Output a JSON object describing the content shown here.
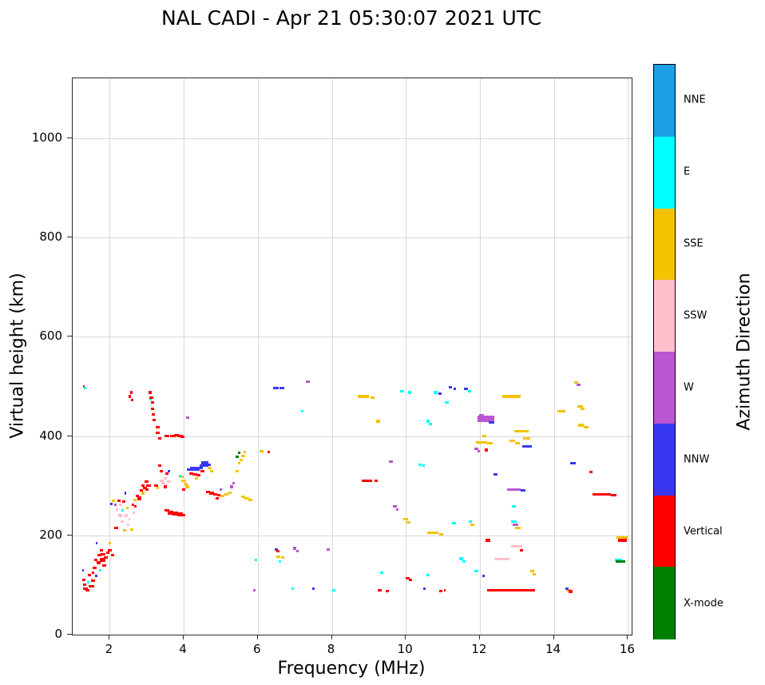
{
  "chart_data": {
    "type": "scatter",
    "title": "NAL CADI - Apr 21 05:30:07 2021 UTC",
    "xlabel": "Frequency (MHz)",
    "ylabel": "Virtual height (km)",
    "xlim": [
      1.0,
      16.1
    ],
    "ylim": [
      0,
      1121
    ],
    "xticks": [
      2,
      4,
      6,
      8,
      10,
      12,
      14,
      16
    ],
    "yticks": [
      0,
      200,
      400,
      600,
      800,
      1000
    ],
    "grid": true,
    "colorbar": {
      "label": "Azimuth Direction",
      "categories": [
        {
          "name": "NNE",
          "color": "#1C9FE6"
        },
        {
          "name": "E",
          "color": "#00FFFF"
        },
        {
          "name": "SSE",
          "color": "#F4C300"
        },
        {
          "name": "SSW",
          "color": "#FFC0CB"
        },
        {
          "name": "W",
          "color": "#BA55D3"
        },
        {
          "name": "NNW",
          "color": "#3838F0"
        },
        {
          "name": "Vertical",
          "color": "#FF0000"
        },
        {
          "name": "X-mode",
          "color": "#008000"
        }
      ]
    },
    "point_format": [
      "freq_mhz",
      "height_km",
      "category_index",
      "span_mhz",
      "thickness_km"
    ],
    "points": [
      [
        1.3,
        500,
        6,
        0.06
      ],
      [
        1.34,
        497,
        1,
        0.06
      ],
      [
        1.28,
        130,
        5,
        0.06
      ],
      [
        1.3,
        110,
        6,
        0.1
      ],
      [
        1.32,
        100,
        6,
        0.1
      ],
      [
        1.35,
        93,
        6,
        0.12
      ],
      [
        1.4,
        90,
        6,
        0.1
      ],
      [
        1.42,
        105,
        1,
        0.06
      ],
      [
        1.45,
        120,
        6,
        0.08
      ],
      [
        1.5,
        97,
        6,
        0.15
      ],
      [
        1.52,
        112,
        3,
        0.06
      ],
      [
        1.55,
        125,
        6,
        0.08
      ],
      [
        1.55,
        108,
        6,
        0.1
      ],
      [
        1.6,
        135,
        6,
        0.1
      ],
      [
        1.62,
        150,
        6,
        0.08
      ],
      [
        1.63,
        118,
        5,
        0.06
      ],
      [
        1.65,
        185,
        5,
        0.05
      ],
      [
        1.7,
        145,
        6,
        0.12
      ],
      [
        1.72,
        160,
        6,
        0.1
      ],
      [
        1.75,
        130,
        1,
        0.06
      ],
      [
        1.78,
        170,
        6,
        0.08
      ],
      [
        1.8,
        150,
        6,
        0.15,
        8
      ],
      [
        1.82,
        162,
        6,
        0.12
      ],
      [
        1.85,
        140,
        6,
        0.1
      ],
      [
        1.9,
        155,
        6,
        0.1
      ],
      [
        1.95,
        165,
        6,
        0.1
      ],
      [
        2.0,
        170,
        6,
        0.12
      ],
      [
        2.0,
        185,
        2,
        0.06
      ],
      [
        2.05,
        263,
        5,
        0.07
      ],
      [
        2.08,
        160,
        6,
        0.08
      ],
      [
        2.1,
        270,
        2,
        0.08
      ],
      [
        2.15,
        262,
        4,
        0.06
      ],
      [
        2.18,
        215,
        6,
        0.1
      ],
      [
        2.2,
        252,
        3,
        0.08
      ],
      [
        2.25,
        270,
        6,
        0.08
      ],
      [
        2.28,
        240,
        3,
        0.1
      ],
      [
        2.3,
        262,
        3,
        0.08
      ],
      [
        2.33,
        228,
        3,
        0.08
      ],
      [
        2.35,
        250,
        1,
        0.06
      ],
      [
        2.38,
        268,
        6,
        0.1
      ],
      [
        2.4,
        210,
        2,
        0.08
      ],
      [
        2.43,
        285,
        5,
        0.05
      ],
      [
        2.45,
        240,
        3,
        0.08
      ],
      [
        2.48,
        255,
        2,
        0.08
      ],
      [
        2.5,
        222,
        3,
        0.08
      ],
      [
        2.53,
        232,
        3,
        0.06
      ],
      [
        2.55,
        480,
        6,
        0.06
      ],
      [
        2.58,
        488,
        6,
        0.06
      ],
      [
        2.6,
        472,
        6,
        0.06
      ],
      [
        2.6,
        212,
        2,
        0.08
      ],
      [
        2.63,
        262,
        6,
        0.08
      ],
      [
        2.65,
        246,
        3,
        0.06
      ],
      [
        2.68,
        272,
        2,
        0.1
      ],
      [
        2.7,
        258,
        6,
        0.06
      ],
      [
        2.75,
        280,
        6,
        0.1
      ],
      [
        2.8,
        275,
        6,
        0.12,
        8
      ],
      [
        2.85,
        290,
        6,
        0.08
      ],
      [
        2.9,
        300,
        6,
        0.1
      ],
      [
        2.9,
        285,
        2,
        0.08
      ],
      [
        2.95,
        295,
        6,
        0.1
      ],
      [
        3.0,
        308,
        6,
        0.1
      ],
      [
        3.0,
        292,
        6,
        0.08
      ],
      [
        3.05,
        300,
        6,
        0.12
      ],
      [
        3.1,
        488,
        6,
        0.08
      ],
      [
        3.1,
        475,
        1,
        0.05
      ],
      [
        3.12,
        478,
        6,
        0.1
      ],
      [
        3.15,
        468,
        6,
        0.08
      ],
      [
        3.15,
        455,
        6,
        0.08
      ],
      [
        3.18,
        443,
        6,
        0.08
      ],
      [
        3.2,
        432,
        6,
        0.08
      ],
      [
        3.25,
        300,
        6,
        0.1
      ],
      [
        3.3,
        418,
        6,
        0.1
      ],
      [
        3.3,
        406,
        6,
        0.12
      ],
      [
        3.3,
        295,
        2,
        0.08
      ],
      [
        3.35,
        395,
        6,
        0.1
      ],
      [
        3.35,
        340,
        6,
        0.08
      ],
      [
        3.4,
        330,
        6,
        0.08
      ],
      [
        3.4,
        310,
        3,
        0.1
      ],
      [
        3.45,
        305,
        3,
        0.1
      ],
      [
        3.5,
        315,
        3,
        0.1
      ],
      [
        3.5,
        298,
        6,
        0.1
      ],
      [
        3.55,
        325,
        6,
        0.08
      ],
      [
        3.6,
        308,
        3,
        0.1
      ],
      [
        3.6,
        330,
        5,
        0.06
      ],
      [
        3.55,
        400,
        6,
        0.12
      ],
      [
        3.7,
        400,
        6,
        0.15
      ],
      [
        3.8,
        402,
        6,
        0.12
      ],
      [
        3.9,
        400,
        6,
        0.15
      ],
      [
        3.97,
        398,
        6,
        0.1
      ],
      [
        3.55,
        250,
        6,
        0.12
      ],
      [
        3.65,
        246,
        6,
        0.15,
        8
      ],
      [
        3.78,
        244,
        6,
        0.15,
        8
      ],
      [
        3.9,
        242,
        6,
        0.15,
        8
      ],
      [
        3.98,
        241,
        6,
        0.12
      ],
      [
        3.95,
        318,
        2,
        0.1
      ],
      [
        4.0,
        310,
        2,
        0.12
      ],
      [
        4.05,
        303,
        2,
        0.1
      ],
      [
        4.1,
        298,
        2,
        0.1
      ],
      [
        3.9,
        320,
        1,
        0.06
      ],
      [
        4.0,
        292,
        6,
        0.1
      ],
      [
        4.1,
        437,
        4,
        0.08
      ],
      [
        4.15,
        332,
        5,
        0.12
      ],
      [
        4.25,
        334,
        5,
        0.15,
        8
      ],
      [
        4.35,
        334,
        5,
        0.15,
        8
      ],
      [
        4.45,
        336,
        5,
        0.12
      ],
      [
        4.5,
        340,
        5,
        0.12
      ],
      [
        4.57,
        344,
        5,
        0.18,
        12
      ],
      [
        4.67,
        342,
        5,
        0.12
      ],
      [
        4.2,
        324,
        6,
        0.12
      ],
      [
        4.3,
        323,
        6,
        0.12
      ],
      [
        4.4,
        322,
        6,
        0.1
      ],
      [
        4.35,
        315,
        2,
        0.08
      ],
      [
        4.5,
        330,
        6,
        0.1
      ],
      [
        4.7,
        336,
        2,
        0.1
      ],
      [
        4.75,
        330,
        2,
        0.08
      ],
      [
        4.65,
        288,
        6,
        0.1
      ],
      [
        4.75,
        285,
        6,
        0.12
      ],
      [
        4.85,
        283,
        6,
        0.12
      ],
      [
        4.95,
        281,
        6,
        0.1
      ],
      [
        5.05,
        280,
        2,
        0.1
      ],
      [
        5.15,
        283,
        2,
        0.1
      ],
      [
        5.25,
        286,
        2,
        0.1
      ],
      [
        5.0,
        292,
        4,
        0.06
      ],
      [
        4.9,
        275,
        6,
        0.08
      ],
      [
        5.3,
        298,
        4,
        0.08
      ],
      [
        5.35,
        305,
        4,
        0.06
      ],
      [
        5.45,
        358,
        7,
        0.08
      ],
      [
        5.5,
        367,
        7,
        0.06
      ],
      [
        5.45,
        330,
        2,
        0.08
      ],
      [
        5.5,
        345,
        2,
        0.08
      ],
      [
        5.55,
        352,
        2,
        0.1
      ],
      [
        5.6,
        360,
        2,
        0.1
      ],
      [
        5.65,
        368,
        2,
        0.08
      ],
      [
        5.6,
        278,
        2,
        0.1
      ],
      [
        5.7,
        274,
        2,
        0.12
      ],
      [
        5.8,
        272,
        2,
        0.1
      ],
      [
        6.1,
        370,
        2,
        0.1
      ],
      [
        6.3,
        368,
        6,
        0.06
      ],
      [
        5.95,
        150,
        1,
        0.06
      ],
      [
        5.9,
        90,
        4,
        0.06
      ],
      [
        6.5,
        497,
        5,
        0.15
      ],
      [
        6.65,
        497,
        5,
        0.12
      ],
      [
        6.5,
        172,
        5,
        0.08
      ],
      [
        6.55,
        168,
        6,
        0.08
      ],
      [
        6.55,
        157,
        2,
        0.12
      ],
      [
        6.67,
        155,
        2,
        0.1
      ],
      [
        6.6,
        148,
        1,
        0.06
      ],
      [
        6.95,
        93,
        1,
        0.06
      ],
      [
        7.0,
        174,
        4,
        0.1
      ],
      [
        7.07,
        168,
        4,
        0.08
      ],
      [
        7.35,
        510,
        4,
        0.1
      ],
      [
        7.2,
        450,
        1,
        0.08
      ],
      [
        7.5,
        92,
        5,
        0.06
      ],
      [
        7.9,
        172,
        4,
        0.08
      ],
      [
        8.05,
        90,
        1,
        0.08
      ],
      [
        8.85,
        480,
        2,
        0.3
      ],
      [
        9.1,
        478,
        2,
        0.12
      ],
      [
        8.95,
        310,
        6,
        0.3
      ],
      [
        9.2,
        310,
        6,
        0.1
      ],
      [
        9.25,
        430,
        2,
        0.12
      ],
      [
        9.3,
        90,
        6,
        0.1
      ],
      [
        9.5,
        88,
        6,
        0.08
      ],
      [
        9.35,
        125,
        1,
        0.08
      ],
      [
        9.6,
        348,
        4,
        0.1
      ],
      [
        9.7,
        258,
        4,
        0.1
      ],
      [
        9.77,
        252,
        4,
        0.08
      ],
      [
        9.9,
        490,
        1,
        0.12
      ],
      [
        10.1,
        488,
        1,
        0.1
      ],
      [
        10.0,
        232,
        2,
        0.12
      ],
      [
        10.07,
        226,
        2,
        0.1
      ],
      [
        10.05,
        114,
        6,
        0.1
      ],
      [
        10.12,
        110,
        6,
        0.08
      ],
      [
        10.38,
        342,
        1,
        0.1
      ],
      [
        10.48,
        340,
        1,
        0.08
      ],
      [
        10.5,
        92,
        5,
        0.06
      ],
      [
        10.6,
        430,
        1,
        0.1
      ],
      [
        10.67,
        425,
        1,
        0.08
      ],
      [
        10.6,
        120,
        1,
        0.08
      ],
      [
        10.72,
        205,
        2,
        0.3
      ],
      [
        10.95,
        202,
        2,
        0.1
      ],
      [
        10.8,
        488,
        1,
        0.1
      ],
      [
        10.92,
        485,
        5,
        0.08
      ],
      [
        10.95,
        88,
        6,
        0.08
      ],
      [
        11.05,
        90,
        6,
        0.06
      ],
      [
        11.1,
        468,
        1,
        0.1
      ],
      [
        11.2,
        498,
        5,
        0.1
      ],
      [
        11.32,
        495,
        5,
        0.08
      ],
      [
        11.3,
        224,
        1,
        0.1
      ],
      [
        11.5,
        153,
        1,
        0.1
      ],
      [
        11.57,
        148,
        1,
        0.08
      ],
      [
        11.62,
        495,
        5,
        0.1
      ],
      [
        11.72,
        490,
        1,
        0.08
      ],
      [
        11.8,
        222,
        2,
        0.12
      ],
      [
        11.75,
        228,
        1,
        0.08
      ],
      [
        11.9,
        128,
        1,
        0.1
      ],
      [
        11.9,
        375,
        4,
        0.1
      ],
      [
        11.97,
        370,
        4,
        0.08
      ],
      [
        12.05,
        388,
        2,
        0.3
      ],
      [
        12.28,
        386,
        2,
        0.15
      ],
      [
        12.12,
        400,
        2,
        0.12
      ],
      [
        12.17,
        435,
        4,
        0.45,
        12
      ],
      [
        12.32,
        427,
        5,
        0.15
      ],
      [
        12.05,
        442,
        4,
        0.12
      ],
      [
        12.22,
        190,
        6,
        0.12
      ],
      [
        12.1,
        118,
        5,
        0.06
      ],
      [
        12.42,
        323,
        5,
        0.12
      ],
      [
        12.17,
        372,
        6,
        0.08
      ],
      [
        12.85,
        90,
        6,
        1.3
      ],
      [
        12.6,
        152,
        3,
        0.4
      ],
      [
        12.85,
        480,
        2,
        0.5
      ],
      [
        12.88,
        390,
        2,
        0.15
      ],
      [
        13.02,
        386,
        2,
        0.12
      ],
      [
        12.92,
        293,
        4,
        0.35
      ],
      [
        13.17,
        291,
        5,
        0.12
      ],
      [
        12.92,
        258,
        1,
        0.1
      ],
      [
        12.92,
        228,
        1,
        0.15
      ],
      [
        12.97,
        222,
        4,
        0.15
      ],
      [
        13.02,
        215,
        2,
        0.15
      ],
      [
        13.0,
        178,
        3,
        0.3
      ],
      [
        13.12,
        170,
        6,
        0.1
      ],
      [
        13.12,
        410,
        2,
        0.4
      ],
      [
        13.27,
        395,
        2,
        0.2
      ],
      [
        13.27,
        380,
        5,
        0.25
      ],
      [
        13.42,
        128,
        2,
        0.1
      ],
      [
        13.47,
        122,
        2,
        0.08
      ],
      [
        14.2,
        450,
        2,
        0.2
      ],
      [
        14.4,
        90,
        2,
        0.12
      ],
      [
        14.45,
        87,
        6,
        0.1
      ],
      [
        14.35,
        93,
        5,
        0.08
      ],
      [
        14.52,
        345,
        5,
        0.15
      ],
      [
        14.6,
        508,
        2,
        0.12
      ],
      [
        14.66,
        503,
        4,
        0.1
      ],
      [
        14.7,
        460,
        2,
        0.15
      ],
      [
        14.78,
        455,
        2,
        0.1
      ],
      [
        14.72,
        422,
        2,
        0.15
      ],
      [
        14.87,
        418,
        2,
        0.12
      ],
      [
        15.0,
        328,
        6,
        0.08
      ],
      [
        15.3,
        282,
        6,
        0.5
      ],
      [
        15.62,
        281,
        6,
        0.15
      ],
      [
        15.85,
        196,
        2,
        0.3
      ],
      [
        15.85,
        190,
        6,
        0.25
      ],
      [
        15.75,
        151,
        1,
        0.2
      ],
      [
        15.8,
        147,
        7,
        0.25
      ]
    ]
  }
}
